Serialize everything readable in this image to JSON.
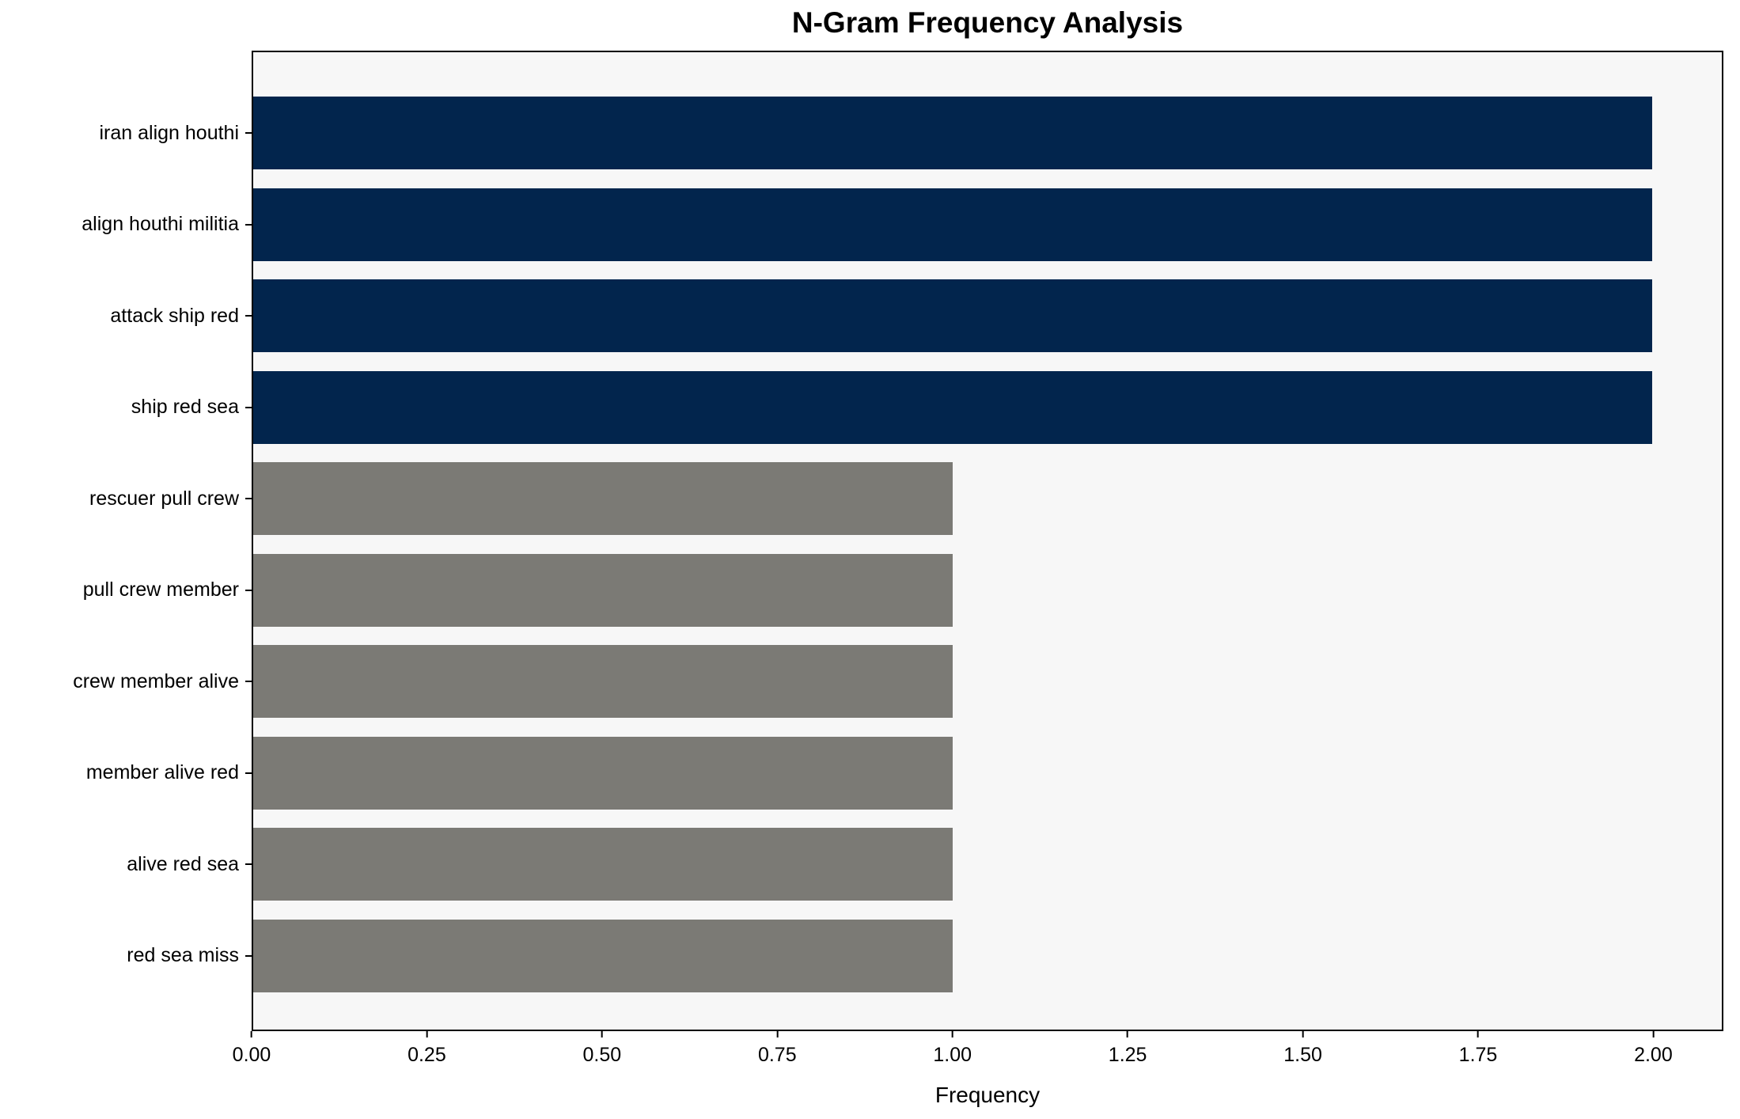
{
  "chart_data": {
    "type": "bar",
    "orientation": "horizontal",
    "title": "N-Gram Frequency Analysis",
    "xlabel": "Frequency",
    "ylabel": "",
    "categories": [
      "iran align houthi",
      "align houthi militia",
      "attack ship red",
      "ship red sea",
      "rescuer pull crew",
      "pull crew member",
      "crew member alive",
      "member alive red",
      "alive red sea",
      "red sea miss"
    ],
    "values": [
      2,
      2,
      2,
      2,
      1,
      1,
      1,
      1,
      1,
      1
    ],
    "bar_colors": [
      "#02254d",
      "#02254d",
      "#02254d",
      "#02254d",
      "#7b7a75",
      "#7b7a75",
      "#7b7a75",
      "#7b7a75",
      "#7b7a75",
      "#7b7a75"
    ],
    "xlim": [
      0,
      2.1
    ],
    "xticks": [
      0,
      0.25,
      0.5,
      0.75,
      1,
      1.25,
      1.5,
      1.75,
      2
    ],
    "xtick_labels": [
      "0.00",
      "0.25",
      "0.50",
      "0.75",
      "1.00",
      "1.25",
      "1.50",
      "1.75",
      "2.00"
    ],
    "grid": false,
    "legend": null,
    "plot_background": "#f7f7f7",
    "figure_background": "#ffffff",
    "accent_color_high": "#02254d",
    "accent_color_low": "#7b7a75"
  }
}
